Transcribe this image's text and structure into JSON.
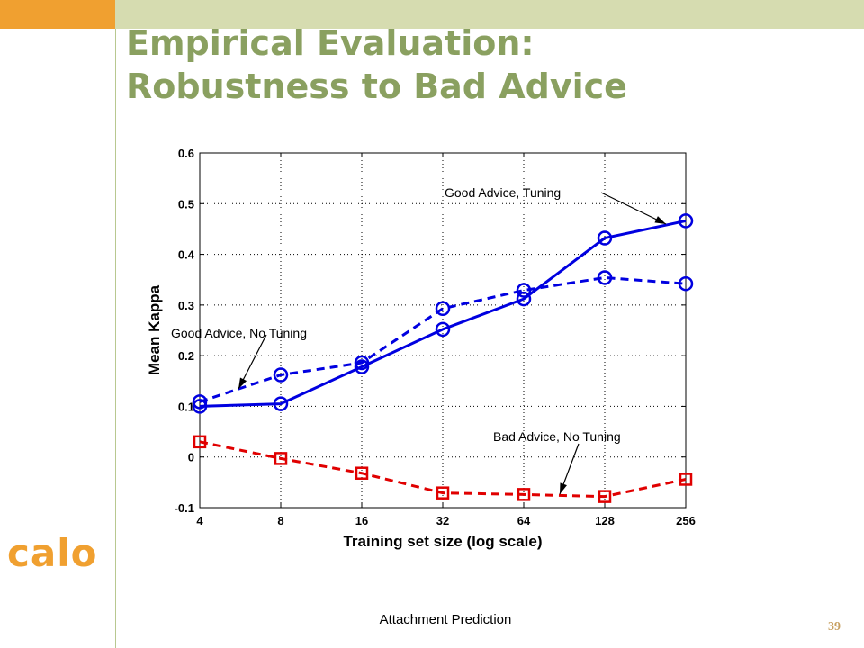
{
  "slide": {
    "title_line1": "Empirical Evaluation:",
    "title_line2": "Robustness to Bad Advice",
    "logo": "calo",
    "footer": "Attachment Prediction",
    "page_number": "39"
  },
  "colors": {
    "accent_orange": "#f0a030",
    "band": "#d6dcb0",
    "title": "#8aa060",
    "good_series": "#0000e0",
    "bad_series": "#e00000"
  },
  "chart_data": {
    "type": "line",
    "x_scale": "log2",
    "x": [
      4,
      8,
      16,
      32,
      64,
      128,
      256
    ],
    "x_tick_labels": [
      "4",
      "8",
      "16",
      "32",
      "64",
      "128",
      "256"
    ],
    "xlabel": "Training set size (log scale)",
    "ylabel": "Mean Kappa",
    "ylim": [
      -0.1,
      0.6
    ],
    "y_ticks": [
      -0.1,
      0,
      0.1,
      0.2,
      0.3,
      0.4,
      0.5,
      0.6
    ],
    "y_tick_labels": [
      "-0.1",
      "0",
      "0.1",
      "0.2",
      "0.3",
      "0.4",
      "0.5",
      "0.6"
    ],
    "grid": true,
    "series": [
      {
        "name": "Good Advice, Tuning",
        "values": [
          0.1,
          0.105,
          0.178,
          0.252,
          0.312,
          0.432,
          0.466
        ],
        "style": "solid",
        "marker": "circle",
        "color": "#0000e0"
      },
      {
        "name": "Good Advice, No Tuning",
        "values": [
          0.109,
          0.162,
          0.186,
          0.293,
          0.329,
          0.354,
          0.342
        ],
        "style": "dashed",
        "marker": "circle",
        "color": "#0000e0"
      },
      {
        "name": "Bad Advice, No Tuning",
        "values": [
          0.03,
          -0.003,
          -0.032,
          -0.071,
          -0.074,
          -0.078,
          -0.044
        ],
        "style": "dashed",
        "marker": "square",
        "color": "#e00000"
      }
    ],
    "annotations": [
      {
        "text": "Good Advice, Tuning",
        "series": 0
      },
      {
        "text": "Good Advice, No Tuning",
        "series": 1
      },
      {
        "text": "Bad Advice, No Tuning",
        "series": 2
      }
    ]
  }
}
